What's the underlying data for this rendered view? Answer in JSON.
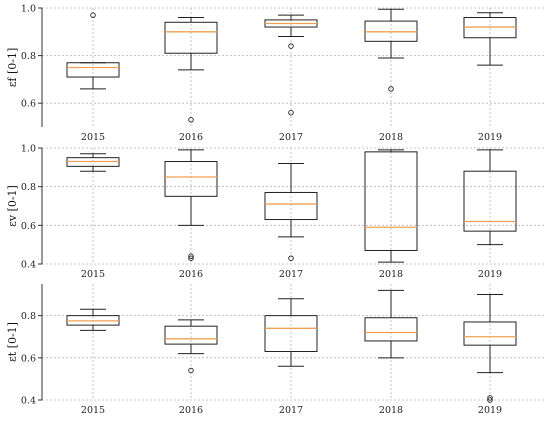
{
  "chart_data": [
    {
      "type": "box",
      "ylabel": "εf [0-1]",
      "categories": [
        "2015",
        "2016",
        "2017",
        "2018",
        "2019"
      ],
      "ylim": [
        0.5,
        1.0
      ],
      "yticks": [
        "0.6",
        "0.8",
        "1.0"
      ],
      "ytick_values": [
        0.6,
        0.8,
        1.0
      ],
      "grid": true,
      "median_color": "#f0a050",
      "boxes": [
        {
          "whislo": 0.66,
          "q1": 0.71,
          "med": 0.75,
          "q3": 0.77,
          "whishi": 0.77,
          "fliers": [
            0.97
          ]
        },
        {
          "whislo": 0.74,
          "q1": 0.81,
          "med": 0.9,
          "q3": 0.94,
          "whishi": 0.96,
          "fliers": [
            0.53
          ]
        },
        {
          "whislo": 0.88,
          "q1": 0.92,
          "med": 0.935,
          "q3": 0.95,
          "whishi": 0.97,
          "fliers": [
            0.84,
            0.56
          ]
        },
        {
          "whislo": 0.79,
          "q1": 0.86,
          "med": 0.9,
          "q3": 0.945,
          "whishi": 0.995,
          "fliers": [
            0.66
          ]
        },
        {
          "whislo": 0.76,
          "q1": 0.875,
          "med": 0.92,
          "q3": 0.96,
          "whishi": 0.98,
          "fliers": []
        }
      ]
    },
    {
      "type": "box",
      "ylabel": "εv [0-1]",
      "categories": [
        "2015",
        "2016",
        "2017",
        "2018",
        "2019"
      ],
      "ylim": [
        0.4,
        1.0
      ],
      "yticks": [
        "0.4",
        "0.6",
        "0.8",
        "1.0"
      ],
      "ytick_values": [
        0.4,
        0.6,
        0.8,
        1.0
      ],
      "grid": true,
      "median_color": "#f0a050",
      "boxes": [
        {
          "whislo": 0.88,
          "q1": 0.905,
          "med": 0.93,
          "q3": 0.95,
          "whishi": 0.97,
          "fliers": []
        },
        {
          "whislo": 0.6,
          "q1": 0.75,
          "med": 0.85,
          "q3": 0.93,
          "whishi": 0.99,
          "fliers": [
            0.44,
            0.43
          ]
        },
        {
          "whislo": 0.54,
          "q1": 0.63,
          "med": 0.71,
          "q3": 0.77,
          "whishi": 0.92,
          "fliers": [
            0.43
          ]
        },
        {
          "whislo": 0.41,
          "q1": 0.47,
          "med": 0.59,
          "q3": 0.98,
          "whishi": 0.99,
          "fliers": []
        },
        {
          "whislo": 0.5,
          "q1": 0.57,
          "med": 0.62,
          "q3": 0.88,
          "whishi": 0.99,
          "fliers": []
        }
      ]
    },
    {
      "type": "box",
      "ylabel": "εt [0-1]",
      "categories": [
        "2015",
        "2016",
        "2017",
        "2018",
        "2019"
      ],
      "ylim": [
        0.4,
        0.95
      ],
      "yticks": [
        "0.4",
        "0.6",
        "0.8"
      ],
      "ytick_values": [
        0.4,
        0.6,
        0.8
      ],
      "grid": true,
      "median_color": "#f0a050",
      "boxes": [
        {
          "whislo": 0.73,
          "q1": 0.755,
          "med": 0.775,
          "q3": 0.8,
          "whishi": 0.83,
          "fliers": []
        },
        {
          "whislo": 0.62,
          "q1": 0.665,
          "med": 0.69,
          "q3": 0.75,
          "whishi": 0.78,
          "fliers": [
            0.54
          ]
        },
        {
          "whislo": 0.56,
          "q1": 0.63,
          "med": 0.74,
          "q3": 0.8,
          "whishi": 0.88,
          "fliers": []
        },
        {
          "whislo": 0.6,
          "q1": 0.68,
          "med": 0.72,
          "q3": 0.79,
          "whishi": 0.92,
          "fliers": []
        },
        {
          "whislo": 0.53,
          "q1": 0.66,
          "med": 0.7,
          "q3": 0.77,
          "whishi": 0.9,
          "fliers": [
            0.41,
            0.4
          ]
        }
      ]
    }
  ]
}
